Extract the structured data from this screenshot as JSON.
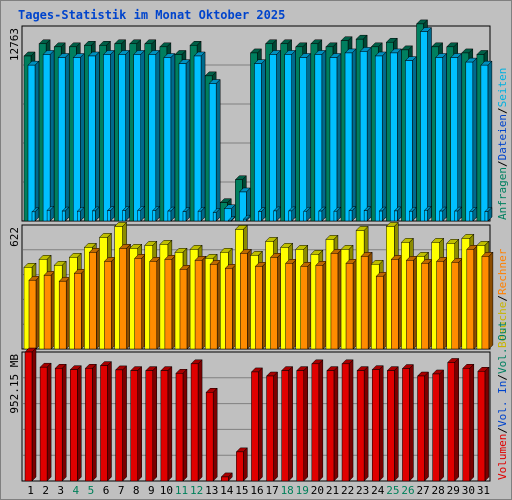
{
  "title": "Tages-Statistik im Monat Oktober 2025",
  "colors": {
    "background": "#c0c0c0",
    "plot": "#c0c0c0",
    "title": "#0044cc",
    "anfragen": "#007f5f",
    "dateien": "#00c0ff",
    "seiten": "#00c0ff",
    "besuche": "#ffff00",
    "rechner": "#ff8c00",
    "volumen": "#e00000",
    "weekend": "#00805a",
    "weekday": "#000000"
  },
  "legends": {
    "top": [
      {
        "text": "Anfragen",
        "color": "#008060"
      },
      {
        "text": "/",
        "color": "#000000"
      },
      {
        "text": "Dateien",
        "color": "#0044cc"
      },
      {
        "text": "/",
        "color": "#000000"
      },
      {
        "text": "Seiten",
        "color": "#00b0e0"
      }
    ],
    "middle": [
      {
        "text": "Besuche",
        "color": "#c8b400"
      },
      {
        "text": "/",
        "color": "#000000"
      },
      {
        "text": "Rechner",
        "color": "#ff8000"
      }
    ],
    "bottom": [
      {
        "text": "Volumen",
        "color": "#e00000"
      },
      {
        "text": "/",
        "color": "#000000"
      },
      {
        "text": "Vol. In",
        "color": "#0044cc"
      },
      {
        "text": "/",
        "color": "#000000"
      },
      {
        "text": "Vol. Out",
        "color": "#008060"
      }
    ]
  },
  "chart_data": {
    "type": "bar",
    "title": "Tages-Statistik im Monat Oktober 2025",
    "categories": [
      "1",
      "2",
      "3",
      "4",
      "5",
      "6",
      "7",
      "8",
      "9",
      "10",
      "11",
      "12",
      "13",
      "14",
      "15",
      "16",
      "17",
      "18",
      "19",
      "20",
      "21",
      "22",
      "23",
      "24",
      "25",
      "26",
      "27",
      "28",
      "29",
      "30",
      "31"
    ],
    "weekend_days": [
      "4",
      "5",
      "11",
      "12",
      "18",
      "19",
      "25",
      "26"
    ],
    "panels": [
      {
        "name": "requests",
        "ylabel": "12763",
        "ymax": 12763,
        "series": [
          {
            "name": "Anfragen",
            "values": [
              10800,
              11600,
              11400,
              11400,
              11500,
              11500,
              11600,
              11600,
              11600,
              11400,
              10900,
              11500,
              9500,
              1200,
              2700,
              11000,
              11600,
              11600,
              11400,
              11600,
              11400,
              11800,
              11900,
              11400,
              11700,
              11200,
              12900,
              11400,
              11400,
              11000,
              10900
            ]
          },
          {
            "name": "Dateien",
            "values": [
              10200,
              10900,
              10700,
              10700,
              10800,
              10900,
              10900,
              10900,
              10900,
              10700,
              10300,
              10800,
              9000,
              800,
              1900,
              10300,
              10900,
              10900,
              10700,
              10900,
              10700,
              11000,
              11100,
              10800,
              11000,
              10500,
              12400,
              10700,
              10700,
              10400,
              10200
            ]
          },
          {
            "name": "Seiten",
            "values": [
              600,
              700,
              650,
              640,
              660,
              680,
              690,
              700,
              690,
              650,
              620,
              640,
              560,
              40,
              120,
              620,
              660,
              660,
              640,
              650,
              640,
              670,
              680,
              650,
              660,
              640,
              700,
              650,
              650,
              630,
              620
            ]
          }
        ]
      },
      {
        "name": "visits",
        "ylabel": "622",
        "ymax": 622,
        "series": [
          {
            "name": "Besuche",
            "values": [
              410,
              450,
              420,
              460,
              510,
              560,
              615,
              505,
              520,
              525,
              485,
              500,
              455,
              485,
              600,
              470,
              540,
              510,
              500,
              475,
              550,
              500,
              595,
              425,
              615,
              535,
              465,
              535,
              530,
              555,
              520
            ]
          },
          {
            "name": "Rechner",
            "values": [
              345,
              370,
              340,
              380,
              485,
              440,
              505,
              455,
              440,
              450,
              400,
              445,
              425,
              405,
              480,
              415,
              460,
              430,
              415,
              420,
              480,
              430,
              465,
              365,
              450,
              445,
              430,
              440,
              435,
              500,
              465
            ]
          }
        ]
      },
      {
        "name": "volume",
        "ylabel": "952.15 MB",
        "ymax": 952.15,
        "series": [
          {
            "name": "Volumen",
            "values": [
              952,
              840,
              832,
              822,
              832,
              852,
              820,
              815,
              815,
              815,
              795,
              865,
              655,
              30,
              215,
              805,
              775,
              815,
              815,
              865,
              815,
              865,
              815,
              822,
              815,
              830,
              775,
              790,
              875,
              832,
              810
            ]
          }
        ]
      }
    ]
  }
}
